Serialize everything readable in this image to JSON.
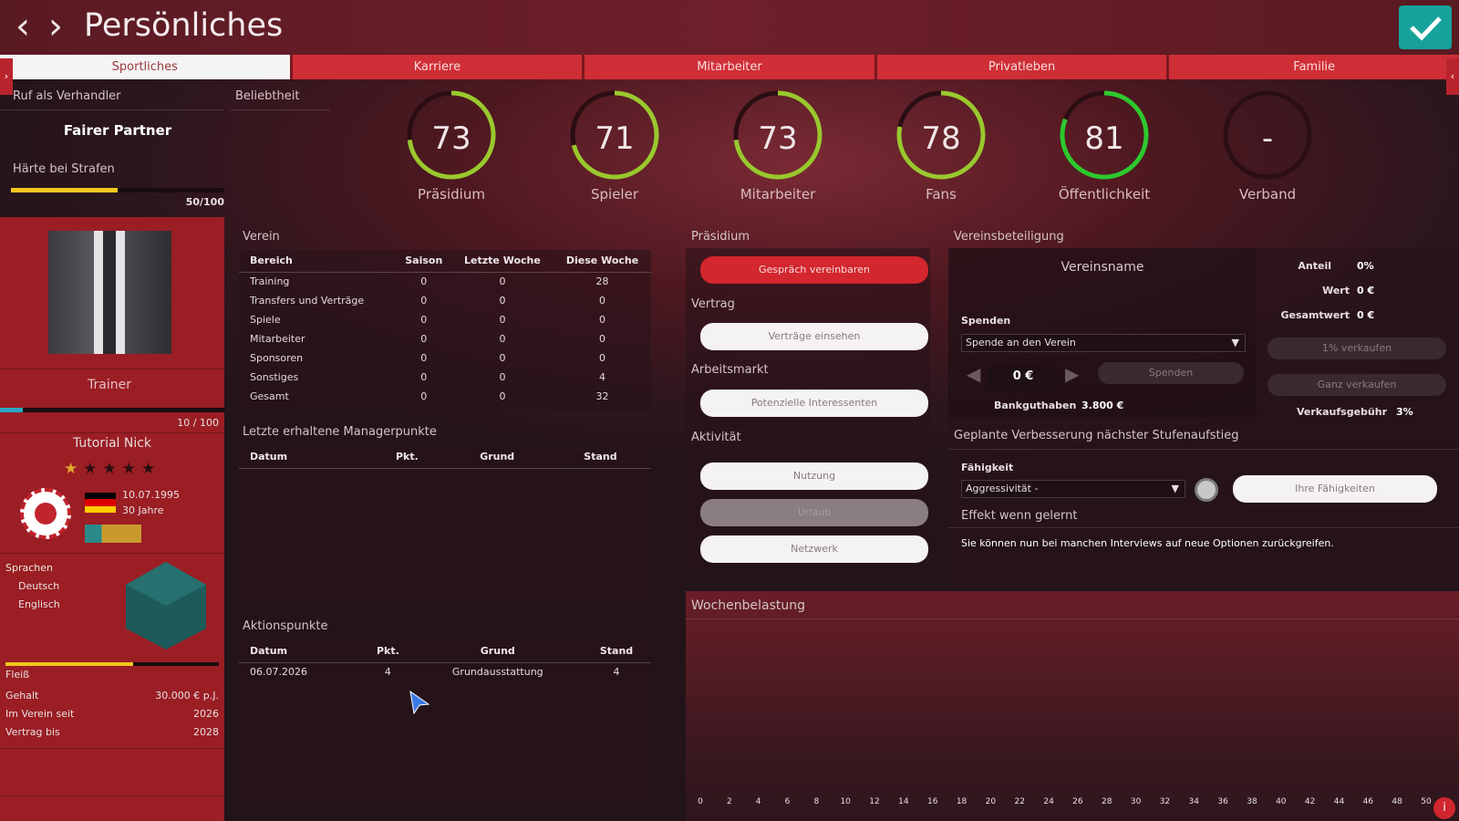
{
  "header": {
    "title": "Persönliches",
    "back_icon": "‹",
    "forward_icon": "›"
  },
  "tabs": [
    {
      "label": "Sportliches",
      "active": true
    },
    {
      "label": "Karriere"
    },
    {
      "label": "Mitarbeiter"
    },
    {
      "label": "Privatleben"
    },
    {
      "label": "Familie"
    }
  ],
  "reputation": {
    "negotiator_label": "Ruf als Verhandler",
    "negotiator_value": "Fairer Partner",
    "popularity_label": "Beliebtheit",
    "harshness_label": "Härte bei Strafen",
    "harshness_value": "50/100",
    "harshness_fraction": 0.5
  },
  "gauges": [
    {
      "value": "73",
      "label": "Präsidium",
      "fraction": 0.73,
      "color": "#9ac82e"
    },
    {
      "value": "71",
      "label": "Spieler",
      "fraction": 0.71,
      "color": "#9ac82e"
    },
    {
      "value": "73",
      "label": "Mitarbeiter",
      "fraction": 0.73,
      "color": "#9ac82e"
    },
    {
      "value": "78",
      "label": "Fans",
      "fraction": 0.78,
      "color": "#9ac82e"
    },
    {
      "value": "81",
      "label": "Öffentlichkeit",
      "fraction": 0.81,
      "color": "#2ec82e"
    },
    {
      "value": "-",
      "label": "Verband",
      "fraction": 0,
      "color": "#5a3a3e"
    }
  ],
  "profile": {
    "role": "Trainer",
    "xp": "10 / 100",
    "xp_fraction": 0.1,
    "name": "Tutorial Nick",
    "stars_filled": 1,
    "stars_total": 5,
    "birthdate": "10.07.1995",
    "age": "30 Jahre",
    "languages_label": "Sprachen",
    "languages": [
      "Deutsch",
      "Englisch"
    ],
    "diligence_label": "Fleiß",
    "diligence_fraction": 0.6,
    "facts": [
      {
        "label": "Gehalt",
        "value": "30.000 € p.J."
      },
      {
        "label": "Im Verein seit",
        "value": "2026"
      },
      {
        "label": "Vertrag bis",
        "value": "2028"
      }
    ]
  },
  "club": {
    "title": "Verein",
    "columns": [
      "Bereich",
      "Saison",
      "Letzte Woche",
      "Diese Woche"
    ],
    "rows": [
      [
        "Training",
        "0",
        "0",
        "28"
      ],
      [
        "Transfers und Verträge",
        "0",
        "0",
        "0"
      ],
      [
        "Spiele",
        "0",
        "0",
        "0"
      ],
      [
        "Mitarbeiter",
        "0",
        "0",
        "0"
      ],
      [
        "Sponsoren",
        "0",
        "0",
        "0"
      ],
      [
        "Sonstiges",
        "0",
        "0",
        "4"
      ],
      [
        "Gesamt",
        "0",
        "0",
        "32"
      ]
    ]
  },
  "manager_points": {
    "title": "Letzte erhaltene Managerpunkte",
    "columns": [
      "Datum",
      "Pkt.",
      "Grund",
      "Stand"
    ]
  },
  "action_points": {
    "title": "Aktionspunkte",
    "columns": [
      "Datum",
      "Pkt.",
      "Grund",
      "Stand"
    ],
    "rows": [
      [
        "06.07.2026",
        "4",
        "Grundausstattung",
        "4"
      ]
    ]
  },
  "board": {
    "title": "Präsidium",
    "meeting_btn": "Gespräch vereinbaren",
    "contract_label": "Vertrag",
    "contracts_btn": "Verträge einsehen",
    "market_label": "Arbeitsmarkt",
    "interested_btn": "Potenzielle Interessenten",
    "activity_label": "Aktivität",
    "usage_btn": "Nutzung",
    "urlaub_btn": "Urlaub",
    "network_btn": "Netzwerk"
  },
  "stake": {
    "title": "Vereinsbeteiligung",
    "club_name": "Vereinsname",
    "share_label": "Anteil",
    "share_value": "0%",
    "value_label": "Wert",
    "value_value": "0 €",
    "total_label": "Gesamtwert",
    "total_value": "0 €",
    "donate_label": "Spenden",
    "donate_select": "Spende an den Verein",
    "amount": "0 €",
    "donate_btn": "Spenden",
    "bank_label": "Bankguthaben",
    "bank_value": "3.800 €",
    "sell1_btn": "1% verkaufen",
    "sellall_btn": "Ganz verkaufen",
    "fee_label": "Verkaufsgebühr",
    "fee_value": "3%"
  },
  "improvement": {
    "title": "Geplante Verbesserung nächster Stufenaufstieg",
    "skill_label": "Fähigkeit",
    "skill_select": "Aggressivität -",
    "skills_btn": "Ihre Fähigkeiten",
    "effect_label": "Effekt wenn gelernt",
    "effect_text": "Sie können nun bei manchen Interviews auf neue Optionen zurückgreifen."
  },
  "weekload": {
    "title": "Wochenbelastung",
    "ticks": [
      "0",
      "2",
      "4",
      "6",
      "8",
      "10",
      "12",
      "14",
      "16",
      "18",
      "20",
      "22",
      "24",
      "26",
      "28",
      "30",
      "32",
      "34",
      "36",
      "38",
      "40",
      "42",
      "44",
      "46",
      "48",
      "50"
    ]
  }
}
